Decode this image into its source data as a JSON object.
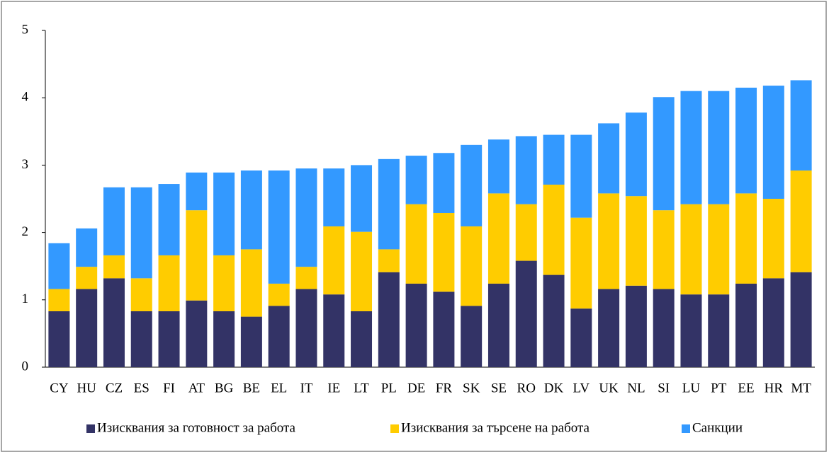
{
  "chart_data": {
    "type": "stacked_bar",
    "categories": [
      "CY",
      "HU",
      "CZ",
      "ES",
      "FI",
      "AT",
      "BG",
      "BE",
      "EL",
      "IT",
      "IE",
      "LT",
      "PL",
      "DE",
      "FR",
      "SK",
      "SE",
      "RO",
      "DK",
      "LV",
      "UK",
      "NL",
      "SI",
      "LU",
      "PT",
      "EE",
      "HR",
      "MT"
    ],
    "series": [
      {
        "name": "Изисквания за готовност за работа",
        "color": "#333366",
        "values": [
          0.83,
          1.16,
          1.32,
          0.83,
          0.83,
          0.99,
          0.83,
          0.75,
          0.91,
          1.16,
          1.08,
          0.83,
          1.41,
          1.24,
          1.12,
          0.91,
          1.24,
          1.58,
          1.37,
          0.87,
          1.16,
          1.21,
          1.16,
          1.08,
          1.08,
          1.24,
          1.32,
          1.41
        ]
      },
      {
        "name": "Изисквания за търсене на работа",
        "color": "#ffcc00",
        "values": [
          0.33,
          0.33,
          0.34,
          0.49,
          0.83,
          1.34,
          0.83,
          1.0,
          0.33,
          0.33,
          1.01,
          1.18,
          0.34,
          1.18,
          1.17,
          1.18,
          1.34,
          0.84,
          1.34,
          1.35,
          1.42,
          1.33,
          1.17,
          1.34,
          1.34,
          1.34,
          1.18,
          1.51
        ]
      },
      {
        "name": "Санкции",
        "color": "#3399ff",
        "values": [
          0.68,
          0.57,
          1.01,
          1.35,
          1.06,
          0.56,
          1.23,
          1.17,
          1.68,
          1.46,
          0.86,
          0.99,
          1.34,
          0.72,
          0.89,
          1.21,
          0.8,
          1.01,
          0.74,
          1.23,
          1.04,
          1.24,
          1.68,
          1.68,
          1.68,
          1.57,
          1.68,
          1.34
        ]
      }
    ],
    "ylim": [
      0,
      5
    ],
    "yticks": [
      0,
      1,
      2,
      3,
      4,
      5
    ],
    "grid": false,
    "legend": "bottom"
  }
}
